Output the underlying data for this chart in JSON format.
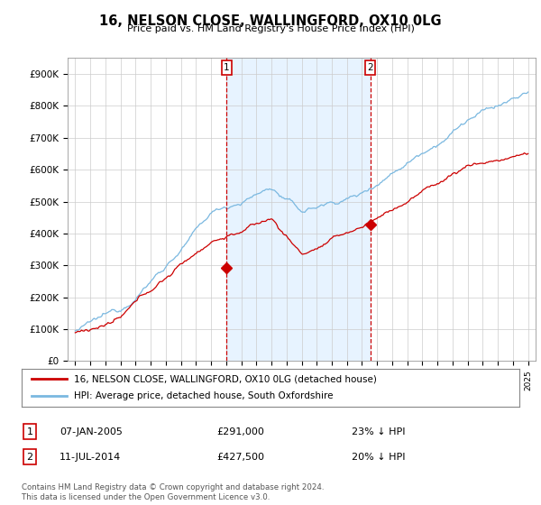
{
  "title": "16, NELSON CLOSE, WALLINGFORD, OX10 0LG",
  "subtitle": "Price paid vs. HM Land Registry's House Price Index (HPI)",
  "ylim": [
    0,
    950000
  ],
  "hpi_color": "#7ab8e0",
  "price_color": "#cc0000",
  "shade_color": "#ddeeff",
  "transaction1": {
    "date_num": 2005.04,
    "price": 291000,
    "label": "1"
  },
  "transaction2": {
    "date_num": 2014.54,
    "price": 427500,
    "label": "2"
  },
  "legend_line1": "16, NELSON CLOSE, WALLINGFORD, OX10 0LG (detached house)",
  "legend_line2": "HPI: Average price, detached house, South Oxfordshire",
  "footer": "Contains HM Land Registry data © Crown copyright and database right 2024.\nThis data is licensed under the Open Government Licence v3.0.",
  "background_color": "#ffffff",
  "grid_color": "#cccccc"
}
